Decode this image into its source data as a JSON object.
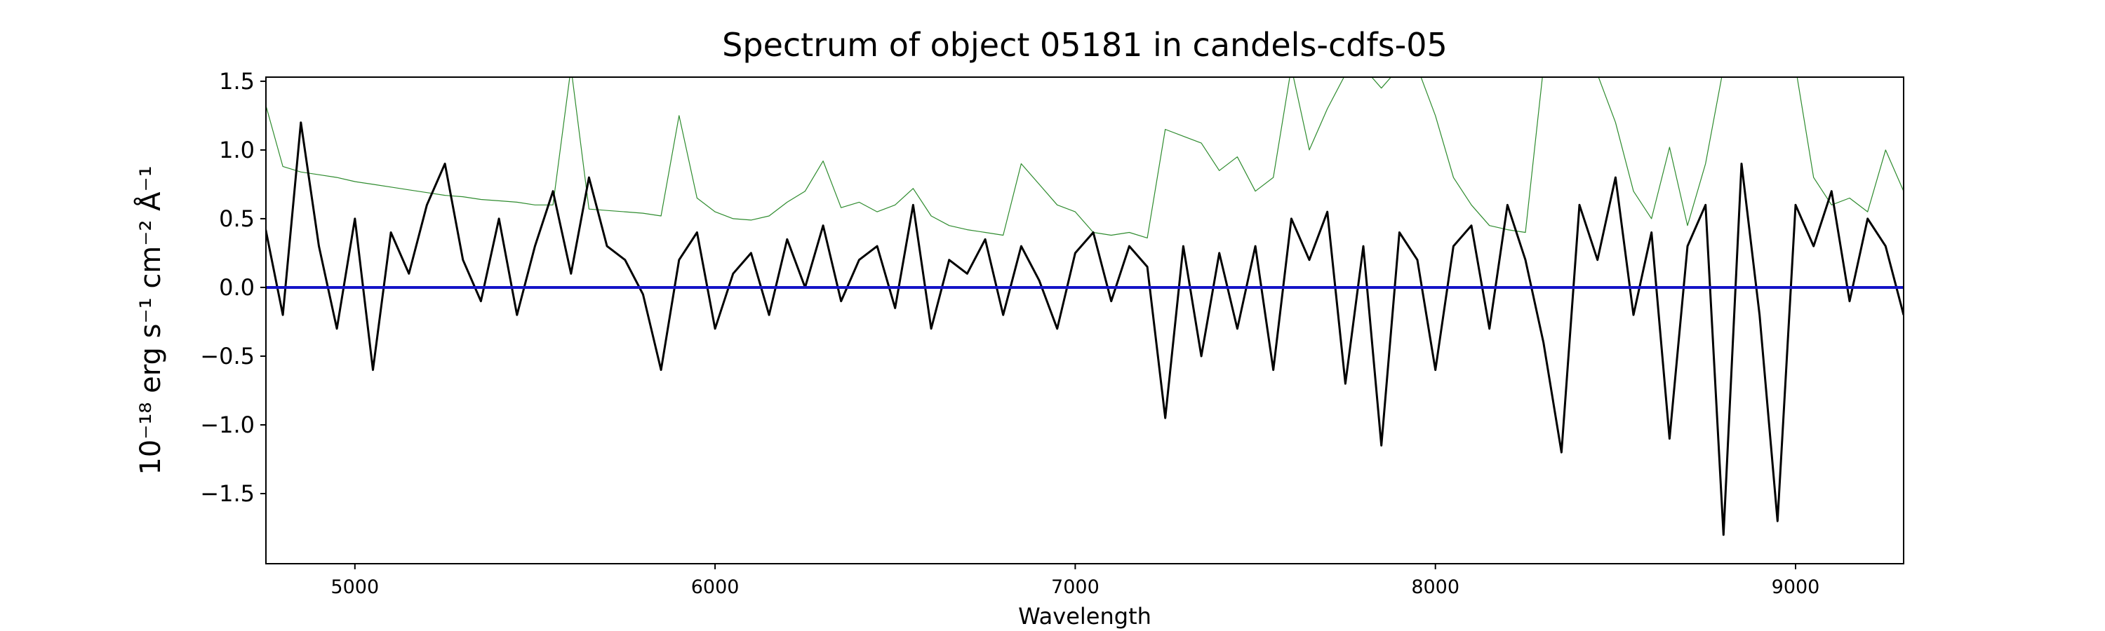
{
  "chart_data": {
    "type": "line",
    "title": "Spectrum of object 05181 in candels-cdfs-05",
    "x_label": "Wavelength",
    "y_label": "10⁻¹⁸ erg s⁻¹ cm⁻² Å⁻¹",
    "x": [
      4750,
      4800,
      4850,
      4900,
      4950,
      5000,
      5050,
      5100,
      5150,
      5200,
      5250,
      5300,
      5350,
      5400,
      5450,
      5500,
      5550,
      5600,
      5650,
      5700,
      5750,
      5800,
      5850,
      5900,
      5950,
      6000,
      6050,
      6100,
      6150,
      6200,
      6250,
      6300,
      6350,
      6400,
      6450,
      6500,
      6550,
      6600,
      6650,
      6700,
      6750,
      6800,
      6850,
      6900,
      6950,
      7000,
      7050,
      7100,
      7150,
      7200,
      7250,
      7300,
      7350,
      7400,
      7450,
      7500,
      7550,
      7600,
      7650,
      7700,
      7750,
      7800,
      7850,
      7900,
      7950,
      8000,
      8050,
      8100,
      8150,
      8200,
      8250,
      8300,
      8350,
      8400,
      8450,
      8500,
      8550,
      8600,
      8650,
      8700,
      8750,
      8800,
      8850,
      8900,
      8950,
      9000,
      9050,
      9100,
      9150,
      9200,
      9250,
      9300
    ],
    "series": [
      {
        "color": "#2e8b2e",
        "width": 1.2,
        "values": [
          1.35,
          0.88,
          0.84,
          0.82,
          0.8,
          0.77,
          0.75,
          0.73,
          0.71,
          0.69,
          0.67,
          0.66,
          0.64,
          0.63,
          0.62,
          0.6,
          0.6,
          1.6,
          0.57,
          0.56,
          0.55,
          0.54,
          0.52,
          1.25,
          0.65,
          0.55,
          0.5,
          0.49,
          0.52,
          0.62,
          0.7,
          0.92,
          0.58,
          0.62,
          0.55,
          0.6,
          0.72,
          0.52,
          0.45,
          0.42,
          0.4,
          0.38,
          0.9,
          0.75,
          0.6,
          0.55,
          0.4,
          0.38,
          0.4,
          0.36,
          1.15,
          1.1,
          1.05,
          0.85,
          0.95,
          0.7,
          0.8,
          1.6,
          1.0,
          1.3,
          1.55,
          1.6,
          1.45,
          1.6,
          1.6,
          1.25,
          0.8,
          0.6,
          0.45,
          0.42,
          0.4,
          1.6,
          1.6,
          1.6,
          1.55,
          1.2,
          0.7,
          0.5,
          1.02,
          0.45,
          0.9,
          1.6,
          1.6,
          1.6,
          1.6,
          1.6,
          0.8,
          0.6,
          0.65,
          0.55,
          1.0,
          0.7
        ]
      },
      {
        "color": "#000000",
        "width": 3,
        "values": [
          0.45,
          -0.2,
          1.2,
          0.3,
          -0.3,
          0.5,
          -0.6,
          0.4,
          0.1,
          0.6,
          0.9,
          0.2,
          -0.1,
          0.5,
          -0.2,
          0.3,
          0.7,
          0.1,
          0.8,
          0.3,
          0.2,
          -0.05,
          -0.6,
          0.2,
          0.4,
          -0.3,
          0.1,
          0.25,
          -0.2,
          0.35,
          0.0,
          0.45,
          -0.1,
          0.2,
          0.3,
          -0.15,
          0.6,
          -0.3,
          0.2,
          0.1,
          0.35,
          -0.2,
          0.3,
          0.05,
          -0.3,
          0.25,
          0.4,
          -0.1,
          0.3,
          0.15,
          -0.95,
          0.3,
          -0.5,
          0.25,
          -0.3,
          0.3,
          -0.6,
          0.5,
          0.2,
          0.55,
          -0.7,
          0.3,
          -1.15,
          0.4,
          0.2,
          -0.6,
          0.3,
          0.45,
          -0.3,
          0.6,
          0.2,
          -0.4,
          -1.2,
          0.6,
          0.2,
          0.8,
          -0.2,
          0.4,
          -1.1,
          0.3,
          0.6,
          -1.8,
          0.9,
          -0.2,
          -1.7,
          0.6,
          0.3,
          0.7,
          -0.1,
          0.5,
          0.3,
          -0.2
        ]
      }
    ],
    "hlines": [
      {
        "y": 0,
        "color": "#1414c8"
      }
    ],
    "xlim": [
      4753,
      9300
    ],
    "ylim": [
      -2.01,
      1.53
    ],
    "xticks": [
      5000,
      6000,
      7000,
      8000,
      9000
    ],
    "yticks": [
      {
        "value": -1.5,
        "label": "−1.5"
      },
      {
        "value": -1.0,
        "label": "−1.0"
      },
      {
        "value": -0.5,
        "label": "−0.5"
      },
      {
        "value": 0.0,
        "label": "0.0"
      },
      0.5,
      {
        "value": 1.0,
        "label": "1.0"
      },
      1.5
    ],
    "grid": false
  }
}
